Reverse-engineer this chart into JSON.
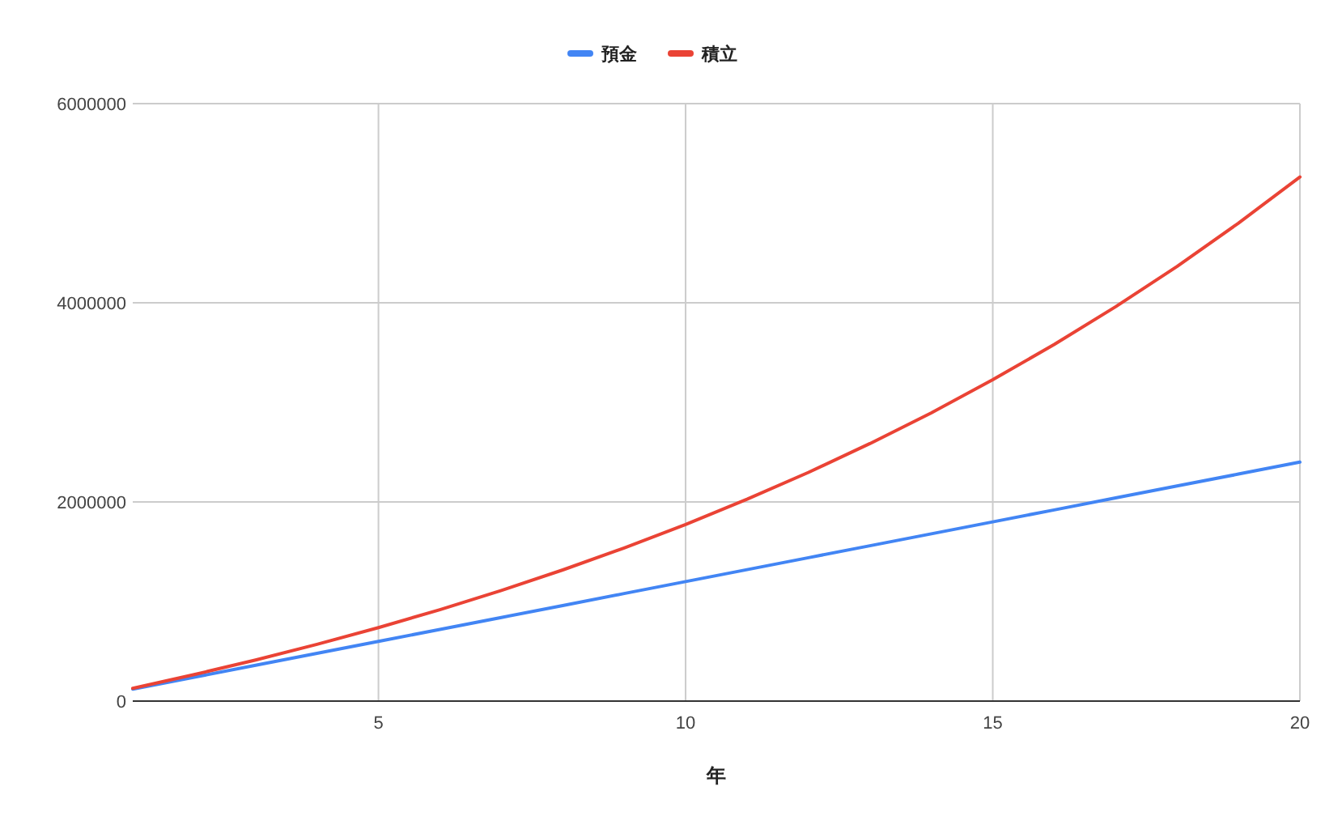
{
  "chart_data": {
    "type": "line",
    "xlabel": "年",
    "x": [
      1,
      2,
      3,
      4,
      5,
      6,
      7,
      8,
      9,
      10,
      11,
      12,
      13,
      14,
      15,
      16,
      17,
      18,
      19,
      20
    ],
    "series": [
      {
        "name": "預金",
        "color": "#4285f4",
        "values": [
          120000,
          240000,
          360000,
          480000,
          600000,
          720000,
          840000,
          960000,
          1080000,
          1200000,
          1320000,
          1440000,
          1560000,
          1680000,
          1800000,
          1920000,
          2040000,
          2160000,
          2280000,
          2400000
        ]
      },
      {
        "name": "積立",
        "color": "#ea4335",
        "values": [
          128000,
          266000,
          413000,
          570000,
          738000,
          918000,
          1111000,
          1317000,
          1538000,
          1774000,
          2027000,
          2297000,
          2586000,
          2895000,
          3227000,
          3581000,
          3960000,
          4365000,
          4800000,
          5264000
        ]
      }
    ],
    "xlim": [
      1,
      20
    ],
    "xticks": [
      5,
      10,
      15,
      20
    ],
    "ylim": [
      0,
      6000000
    ],
    "yticks": [
      0,
      2000000,
      4000000,
      6000000
    ],
    "grid": true,
    "legend": "top",
    "marker": "none",
    "line_style": "solid"
  }
}
